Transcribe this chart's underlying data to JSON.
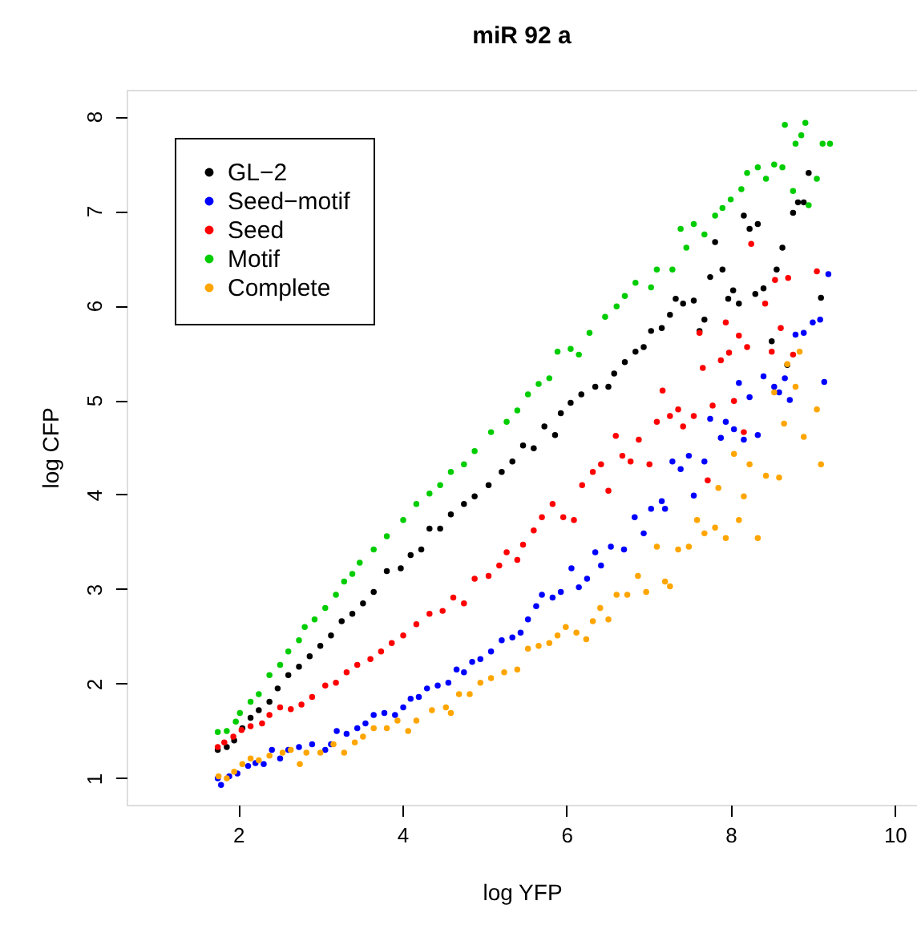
{
  "chart_data": {
    "type": "scatter",
    "title": "miR 92 a",
    "xlabel": "log YFP",
    "ylabel": "log CFP",
    "xlim": [
      0.64,
      10.27
    ],
    "ylim": [
      0.72,
      8.28
    ],
    "xticks": [
      2,
      4,
      6,
      8,
      10
    ],
    "yticks": [
      1,
      2,
      3,
      4,
      5,
      6,
      7,
      8
    ],
    "grid": false,
    "legend": "top left",
    "marker": "circle",
    "series": [
      {
        "name": "GL−2",
        "color": "#000000",
        "x": [
          1.75,
          1.86,
          1.95,
          2.05,
          2.15,
          2.25,
          2.38,
          2.48,
          2.61,
          2.74,
          2.87,
          3.0,
          3.13,
          3.26,
          3.39,
          3.52,
          3.65,
          3.81,
          3.98,
          4.1,
          4.23,
          4.33,
          4.46,
          4.59,
          4.75,
          4.88,
          5.05,
          5.21,
          5.34,
          5.47,
          5.6,
          5.73,
          5.86,
          5.93,
          6.05,
          6.18,
          6.35,
          6.51,
          6.58,
          6.71,
          6.84,
          6.94,
          7.03,
          7.16,
          7.26,
          7.33,
          7.42,
          7.55,
          7.62,
          7.68,
          7.75,
          7.81,
          7.9,
          7.97,
          8.03,
          8.1,
          8.16,
          8.23,
          8.33,
          8.3,
          8.4,
          8.5,
          8.56,
          8.63,
          8.69,
          8.76,
          8.82,
          8.89,
          8.95,
          9.1
        ],
        "values": [
          1.3,
          1.33,
          1.4,
          1.53,
          1.64,
          1.72,
          1.81,
          1.95,
          2.09,
          2.18,
          2.29,
          2.4,
          2.51,
          2.66,
          2.74,
          2.85,
          2.97,
          3.19,
          3.22,
          3.36,
          3.42,
          3.64,
          3.64,
          3.79,
          3.9,
          3.98,
          4.1,
          4.24,
          4.35,
          4.52,
          4.49,
          4.72,
          4.63,
          4.86,
          4.97,
          5.06,
          5.14,
          5.14,
          5.28,
          5.4,
          5.51,
          5.56,
          5.73,
          5.76,
          5.9,
          6.07,
          6.02,
          6.05,
          5.73,
          5.85,
          6.3,
          6.67,
          6.38,
          6.07,
          6.16,
          6.02,
          6.95,
          6.81,
          6.86,
          6.12,
          6.18,
          5.62,
          6.38,
          6.61,
          5.37,
          6.98,
          7.09,
          7.09,
          7.4,
          6.08
        ]
      },
      {
        "name": "Seed−motif",
        "color": "#0000ff",
        "x": [
          1.75,
          1.79,
          1.89,
          1.99,
          2.12,
          2.21,
          2.31,
          2.41,
          2.51,
          2.61,
          2.74,
          2.9,
          3.06,
          3.13,
          3.2,
          3.32,
          3.45,
          3.55,
          3.65,
          3.78,
          3.91,
          4.01,
          4.1,
          4.2,
          4.3,
          4.43,
          4.56,
          4.66,
          4.75,
          4.85,
          4.95,
          5.08,
          5.21,
          5.34,
          5.44,
          5.53,
          5.63,
          5.7,
          5.83,
          5.93,
          6.06,
          6.15,
          6.25,
          6.35,
          6.42,
          6.54,
          6.7,
          6.83,
          6.94,
          7.03,
          7.16,
          7.2,
          7.29,
          7.39,
          7.49,
          7.55,
          7.68,
          7.75,
          7.88,
          7.94,
          8.04,
          8.1,
          8.16,
          8.23,
          8.33,
          8.4,
          8.53,
          8.59,
          8.66,
          8.72,
          8.79,
          8.89,
          9.0,
          9.09,
          9.14,
          9.19
        ],
        "values": [
          1.0,
          0.93,
          1.02,
          1.05,
          1.13,
          1.16,
          1.15,
          1.3,
          1.21,
          1.3,
          1.33,
          1.36,
          1.3,
          1.36,
          1.5,
          1.47,
          1.53,
          1.58,
          1.67,
          1.69,
          1.67,
          1.75,
          1.84,
          1.86,
          1.95,
          1.98,
          2.01,
          2.15,
          2.12,
          2.23,
          2.26,
          2.34,
          2.46,
          2.49,
          2.54,
          2.68,
          2.82,
          2.94,
          2.91,
          2.97,
          3.22,
          3.02,
          3.11,
          3.39,
          3.25,
          3.45,
          3.42,
          3.76,
          3.59,
          3.85,
          3.93,
          3.85,
          4.35,
          4.27,
          4.41,
          3.99,
          4.35,
          4.8,
          4.6,
          4.77,
          4.69,
          5.18,
          4.58,
          5.03,
          4.63,
          5.25,
          5.14,
          5.08,
          5.23,
          5.0,
          5.69,
          5.71,
          5.82,
          5.85,
          5.19,
          6.33
        ]
      },
      {
        "name": "Seed",
        "color": "#ff0000",
        "x": [
          1.75,
          1.83,
          1.94,
          2.04,
          2.15,
          2.29,
          2.38,
          2.51,
          2.64,
          2.77,
          2.9,
          3.06,
          3.19,
          3.32,
          3.45,
          3.61,
          3.74,
          3.87,
          4.01,
          4.17,
          4.33,
          4.49,
          4.62,
          4.75,
          4.88,
          5.05,
          5.18,
          5.27,
          5.4,
          5.47,
          5.6,
          5.7,
          5.83,
          5.96,
          6.09,
          6.19,
          6.32,
          6.42,
          6.51,
          6.6,
          6.68,
          6.78,
          6.88,
          7.01,
          7.1,
          7.17,
          7.26,
          7.36,
          7.42,
          7.55,
          7.62,
          7.66,
          7.72,
          7.78,
          7.88,
          7.94,
          7.98,
          8.04,
          8.1,
          8.16,
          8.2,
          8.25,
          8.42,
          8.5,
          8.54,
          8.61,
          8.7,
          8.76,
          9.05
        ],
        "values": [
          1.33,
          1.38,
          1.44,
          1.51,
          1.55,
          1.58,
          1.67,
          1.75,
          1.73,
          1.78,
          1.86,
          1.98,
          2.01,
          2.12,
          2.2,
          2.26,
          2.34,
          2.43,
          2.51,
          2.63,
          2.74,
          2.77,
          2.91,
          2.85,
          3.11,
          3.14,
          3.25,
          3.39,
          3.31,
          3.47,
          3.62,
          3.76,
          3.9,
          3.76,
          3.73,
          4.1,
          4.24,
          4.32,
          4.04,
          4.62,
          4.41,
          4.35,
          4.58,
          4.32,
          4.77,
          5.1,
          4.83,
          4.9,
          4.72,
          4.83,
          5.71,
          5.34,
          4.15,
          4.94,
          5.42,
          5.82,
          5.5,
          4.99,
          5.68,
          4.66,
          5.56,
          6.65,
          6.02,
          5.51,
          6.27,
          5.76,
          6.29,
          5.48,
          6.36
        ]
      },
      {
        "name": "Motif",
        "color": "#00cd00",
        "x": [
          1.75,
          1.86,
          1.97,
          2.02,
          2.15,
          2.25,
          2.38,
          2.51,
          2.61,
          2.74,
          2.81,
          2.93,
          3.06,
          3.19,
          3.29,
          3.39,
          3.48,
          3.65,
          3.81,
          4.01,
          4.17,
          4.33,
          4.46,
          4.59,
          4.75,
          4.88,
          5.08,
          5.27,
          5.4,
          5.53,
          5.66,
          5.79,
          5.89,
          6.05,
          6.15,
          6.28,
          6.47,
          6.61,
          6.71,
          6.84,
          7.03,
          7.1,
          7.29,
          7.39,
          7.46,
          7.55,
          7.68,
          7.81,
          7.9,
          8.0,
          8.13,
          8.2,
          8.33,
          8.43,
          8.53,
          8.63,
          8.66,
          8.76,
          8.79,
          8.86,
          8.91,
          8.95,
          9.05,
          9.12,
          9.21
        ],
        "values": [
          1.49,
          1.5,
          1.6,
          1.69,
          1.81,
          1.89,
          2.09,
          2.2,
          2.34,
          2.46,
          2.6,
          2.68,
          2.8,
          2.94,
          3.08,
          3.16,
          3.28,
          3.42,
          3.56,
          3.73,
          3.9,
          4.01,
          4.1,
          4.24,
          4.32,
          4.46,
          4.66,
          4.77,
          4.89,
          5.06,
          5.17,
          5.23,
          5.51,
          5.54,
          5.48,
          5.71,
          5.88,
          5.99,
          6.1,
          6.24,
          6.19,
          6.38,
          6.38,
          6.81,
          6.61,
          6.86,
          6.75,
          6.95,
          7.03,
          7.12,
          7.23,
          7.4,
          7.46,
          7.34,
          7.49,
          7.46,
          7.91,
          7.21,
          7.71,
          7.8,
          7.93,
          7.06,
          7.34,
          7.71,
          7.71
        ]
      },
      {
        "name": "Complete",
        "color": "#ffa500",
        "x": [
          1.76,
          1.86,
          1.95,
          2.05,
          2.15,
          2.25,
          2.38,
          2.54,
          2.64,
          2.75,
          2.83,
          3.0,
          3.16,
          3.29,
          3.42,
          3.52,
          3.65,
          3.81,
          3.94,
          4.07,
          4.17,
          4.36,
          4.53,
          4.59,
          4.69,
          4.82,
          4.95,
          5.08,
          5.24,
          5.4,
          5.53,
          5.66,
          5.79,
          5.89,
          5.99,
          6.12,
          6.24,
          6.32,
          6.41,
          6.51,
          6.61,
          6.74,
          6.87,
          6.97,
          7.1,
          7.2,
          7.26,
          7.36,
          7.49,
          7.59,
          7.68,
          7.81,
          7.85,
          7.94,
          8.04,
          8.1,
          8.16,
          8.23,
          8.33,
          8.43,
          8.53,
          8.59,
          8.65,
          8.69,
          8.79,
          8.84,
          8.89,
          9.05,
          9.1
        ],
        "values": [
          1.02,
          1.0,
          1.07,
          1.15,
          1.21,
          1.19,
          1.24,
          1.27,
          1.3,
          1.15,
          1.27,
          1.27,
          1.36,
          1.27,
          1.38,
          1.44,
          1.53,
          1.53,
          1.61,
          1.5,
          1.61,
          1.72,
          1.75,
          1.69,
          1.89,
          1.89,
          2.01,
          2.06,
          2.12,
          2.15,
          2.37,
          2.4,
          2.43,
          2.51,
          2.6,
          2.54,
          2.47,
          2.66,
          2.8,
          2.68,
          2.94,
          2.94,
          3.14,
          2.97,
          3.45,
          3.08,
          3.03,
          3.42,
          3.45,
          3.73,
          3.59,
          3.65,
          4.07,
          3.54,
          4.43,
          3.73,
          3.98,
          4.32,
          3.54,
          4.2,
          5.08,
          4.18,
          4.75,
          5.38,
          5.14,
          5.51,
          4.61,
          4.9,
          4.32
        ]
      }
    ]
  }
}
